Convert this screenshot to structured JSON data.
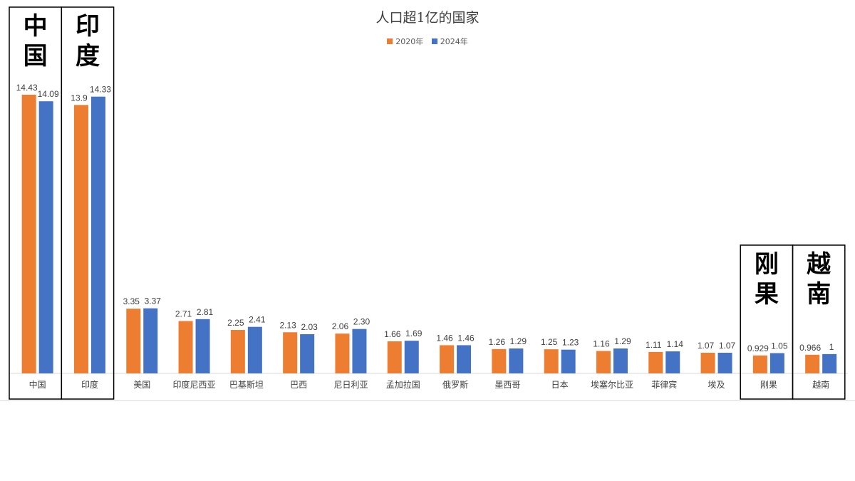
{
  "chart_data": {
    "type": "bar",
    "title": "人口超1亿的国家",
    "xlabel": "",
    "ylabel": "",
    "ylim": [
      0,
      16
    ],
    "grid": false,
    "legend_position": "top-center",
    "categories": [
      "中国",
      "印度",
      "美国",
      "印度尼西亚",
      "巴基斯坦",
      "巴西",
      "尼日利亚",
      "孟加拉国",
      "俄罗斯",
      "墨西哥",
      "日本",
      "埃塞尔比亚",
      "菲律宾",
      "埃及",
      "刚果",
      "越南"
    ],
    "series": [
      {
        "name": "2020年",
        "color": "#ed7d31",
        "values": [
          14.43,
          13.9,
          3.35,
          2.71,
          2.25,
          2.13,
          2.06,
          1.66,
          1.46,
          1.26,
          1.25,
          1.16,
          1.11,
          1.07,
          0.929,
          0.966
        ],
        "labels": [
          "14.43",
          "13.9",
          "3.35",
          "2.71",
          "2.25",
          "2.13",
          "2.06",
          "1.66",
          "1.46",
          "1.26",
          "1.25",
          "1.16",
          "1.11",
          "1.07",
          "0.929",
          "0.966"
        ]
      },
      {
        "name": "2024年",
        "color": "#4472c4",
        "values": [
          14.09,
          14.33,
          3.37,
          2.81,
          2.41,
          2.03,
          2.3,
          1.69,
          1.46,
          1.29,
          1.23,
          1.29,
          1.14,
          1.07,
          1.05,
          1
        ],
        "labels": [
          "14.09",
          "14.33",
          "3.37",
          "2.81",
          "2.41",
          "2.03",
          "2.30",
          "1.69",
          "1.46",
          "1.29",
          "1.23",
          "1.29",
          "1.14",
          "1.07",
          "1.05",
          "1"
        ]
      }
    ],
    "highlights": [
      {
        "category_index": 0,
        "text": "中国"
      },
      {
        "category_index": 1,
        "text": "印度"
      },
      {
        "category_index": 14,
        "text": "刚果"
      },
      {
        "category_index": 15,
        "text": "越南"
      }
    ]
  }
}
